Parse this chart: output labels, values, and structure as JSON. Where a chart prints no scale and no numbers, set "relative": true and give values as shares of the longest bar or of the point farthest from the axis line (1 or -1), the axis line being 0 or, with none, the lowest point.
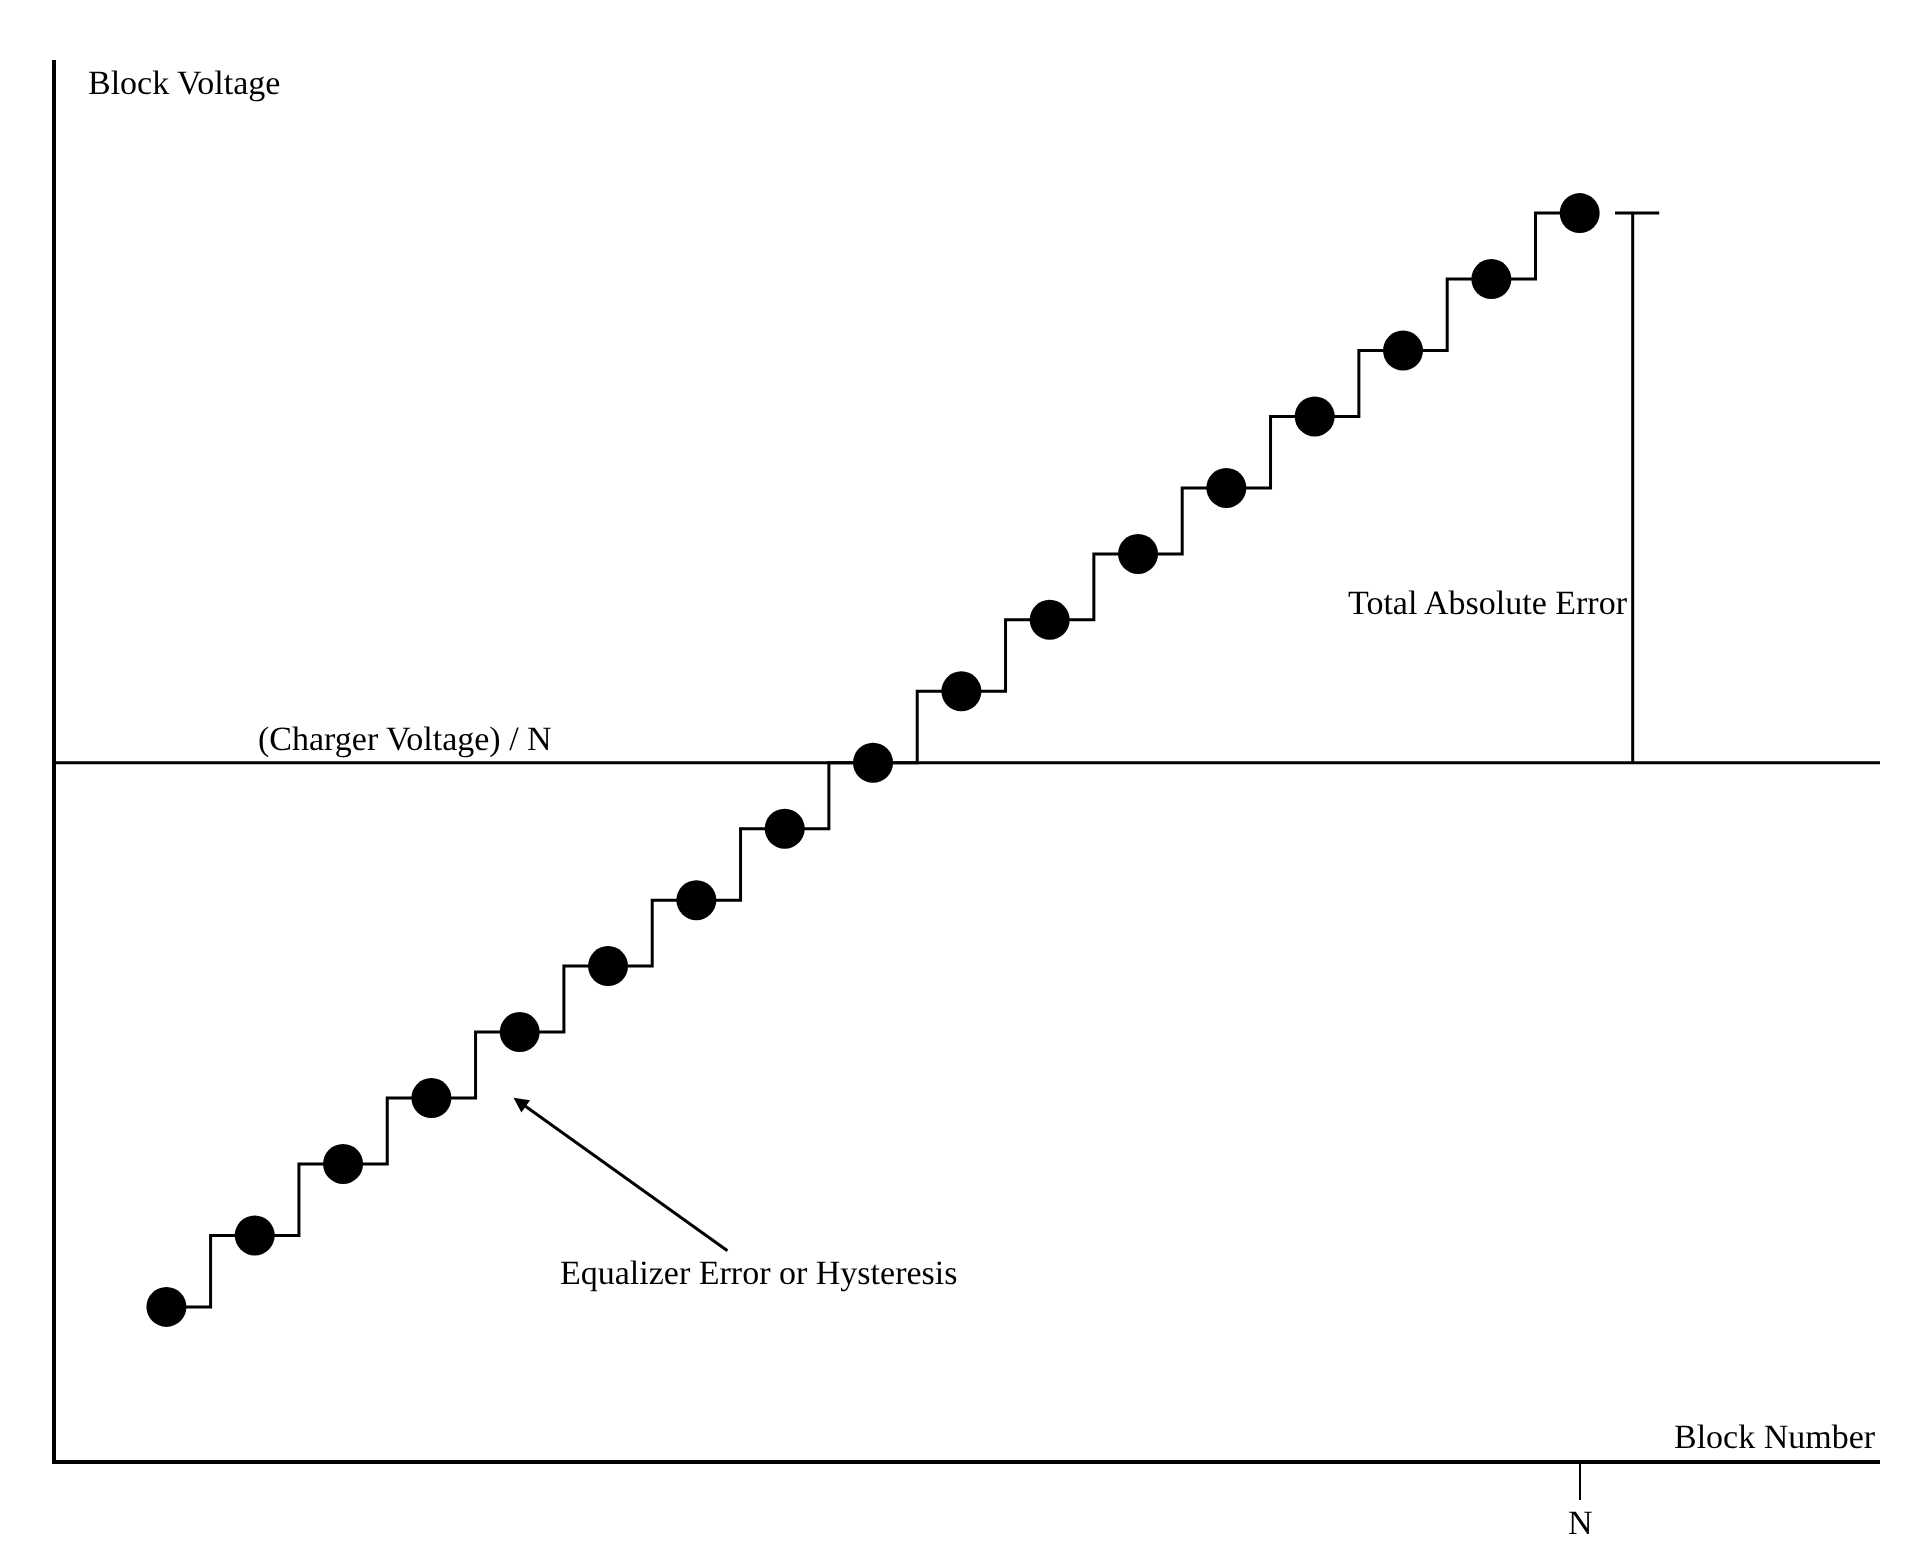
{
  "chart_data": {
    "type": "step",
    "relative": true,
    "xlabel": "Block Number",
    "ylabel": "Block Voltage",
    "categories": [
      null,
      null,
      null,
      null,
      null,
      null,
      null,
      null,
      null,
      null,
      null,
      null,
      null,
      null,
      null,
      null,
      null
    ],
    "series": [
      {
        "color": "#000000",
        "values": [
          -0.99,
          -0.86,
          -0.73,
          -0.61,
          -0.49,
          -0.37,
          -0.25,
          -0.12,
          0.0,
          0.13,
          0.26,
          0.38,
          0.5,
          0.63,
          0.75,
          0.88,
          1.0
        ]
      }
    ],
    "marker": "circle",
    "line_style": "solid",
    "ref_lines": [
      {
        "axis": "y",
        "value": 0,
        "label": "(Charger Voltage) / N",
        "color": "#000000"
      }
    ],
    "annotations": [
      "Equalizer Error or Hysteresis",
      "Total Absolute Error",
      "N"
    ],
    "legend": false
  }
}
